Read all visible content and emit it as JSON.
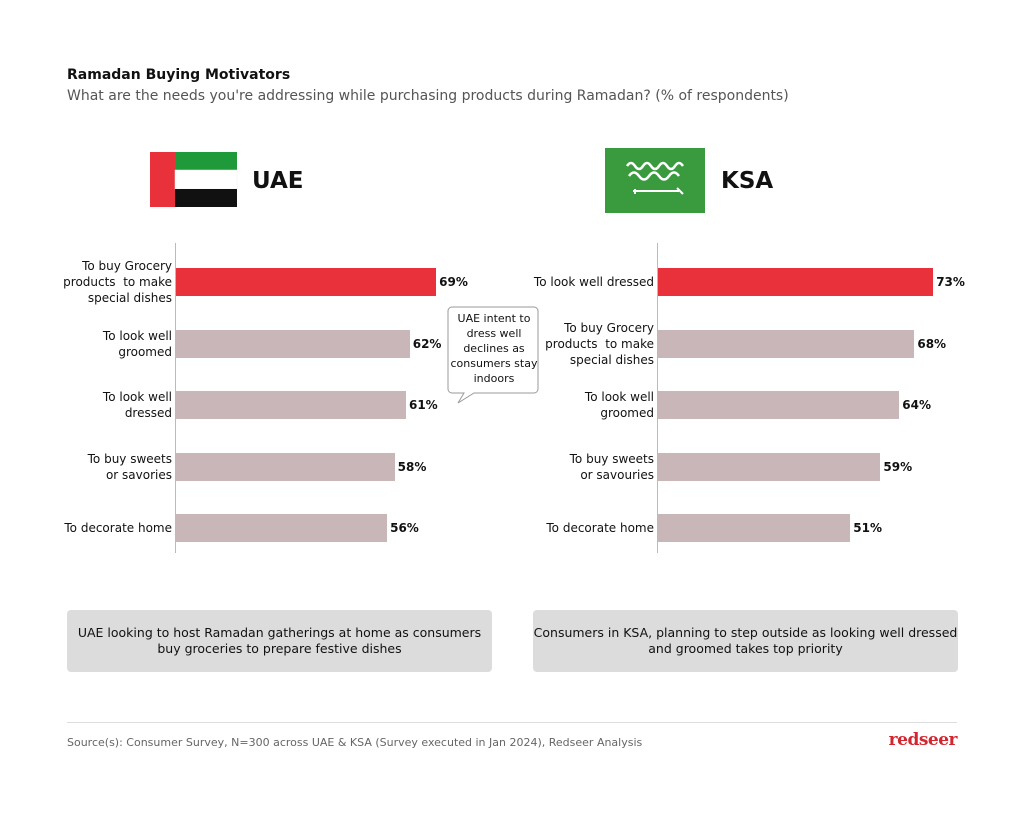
{
  "title": "Ramadan Buying Motivators",
  "subtitle": "What are the needs you're addressing while purchasing products during Ramadan? (% of respondents)",
  "chart_data": [
    {
      "type": "bar",
      "orientation": "horizontal",
      "title": "UAE",
      "categories": [
        "To buy Grocery\nproducts  to make\nspecial dishes",
        "To look well\ngroomed",
        "To look well\ndressed",
        "To buy sweets\nor savories",
        "To decorate home"
      ],
      "values": [
        69,
        62,
        61,
        58,
        56
      ],
      "value_labels": [
        "69%",
        "62%",
        "61%",
        "58%",
        "56%"
      ],
      "colors": [
        "#e8313a",
        "#c9b6b9",
        "#c9b6b9",
        "#c9b6b9",
        "#c9b6b9"
      ],
      "annotation": "UAE intent to\ndress well\ndeclines as\nconsumers stay\nindoors",
      "note": "UAE looking to host Ramadan gatherings at home as consumers\nbuy groceries to prepare festive dishes"
    },
    {
      "type": "bar",
      "orientation": "horizontal",
      "title": "KSA",
      "categories": [
        "To look well dressed",
        "To buy Grocery\nproducts  to make\nspecial dishes",
        "To look well\ngroomed",
        "To buy sweets\nor savouries",
        "To decorate home"
      ],
      "values": [
        73,
        68,
        64,
        59,
        51
      ],
      "value_labels": [
        "73%",
        "68%",
        "64%",
        "59%",
        "51%"
      ],
      "colors": [
        "#e8313a",
        "#c9b6b9",
        "#c9b6b9",
        "#c9b6b9",
        "#c9b6b9"
      ],
      "note": "Consumers in KSA, planning to step outside as looking well dressed\nand groomed takes top priority"
    }
  ],
  "source": "Source(s): Consumer Survey, N=300 across UAE & KSA (Survey executed in Jan 2024), Redseer Analysis",
  "brand": "redseer"
}
